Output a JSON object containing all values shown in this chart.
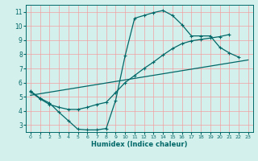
{
  "xlabel": "Humidex (Indice chaleur)",
  "background_color": "#d4f0ec",
  "grid_color": "#f0a0a0",
  "line_color": "#006868",
  "xlim": [
    -0.5,
    23.5
  ],
  "ylim": [
    2.5,
    11.5
  ],
  "xticks": [
    0,
    1,
    2,
    3,
    4,
    5,
    6,
    7,
    8,
    9,
    10,
    11,
    12,
    13,
    14,
    15,
    16,
    17,
    18,
    19,
    20,
    21,
    22,
    23
  ],
  "yticks": [
    3,
    4,
    5,
    6,
    7,
    8,
    9,
    10,
    11
  ],
  "curve1_x": [
    0,
    1,
    2,
    3,
    4,
    5,
    6,
    7,
    8,
    9,
    10,
    11,
    12,
    13,
    14,
    15,
    16,
    17,
    18,
    19,
    20,
    21,
    22
  ],
  "curve1_y": [
    5.4,
    4.9,
    4.55,
    3.9,
    3.3,
    2.7,
    2.65,
    2.65,
    2.75,
    4.75,
    7.9,
    10.55,
    10.75,
    10.95,
    11.1,
    10.75,
    10.1,
    9.3,
    9.3,
    9.3,
    8.5,
    8.1,
    7.8
  ],
  "curve2_x": [
    0,
    1,
    2,
    3,
    4,
    5,
    6,
    7,
    8,
    9,
    10,
    11,
    12,
    13,
    14,
    15,
    16,
    17,
    18,
    19,
    20,
    21,
    22,
    23
  ],
  "curve2_y": [
    5.35,
    4.85,
    4.45,
    4.25,
    4.1,
    4.1,
    4.25,
    4.45,
    4.6,
    5.3,
    6.0,
    6.5,
    7.0,
    7.45,
    7.95,
    8.4,
    8.75,
    8.95,
    9.05,
    9.15,
    9.25,
    9.4,
    null,
    null
  ],
  "curve3_x": [
    0,
    23
  ],
  "curve3_y": [
    5.1,
    7.6
  ],
  "markersize": 3,
  "linewidth": 0.9
}
